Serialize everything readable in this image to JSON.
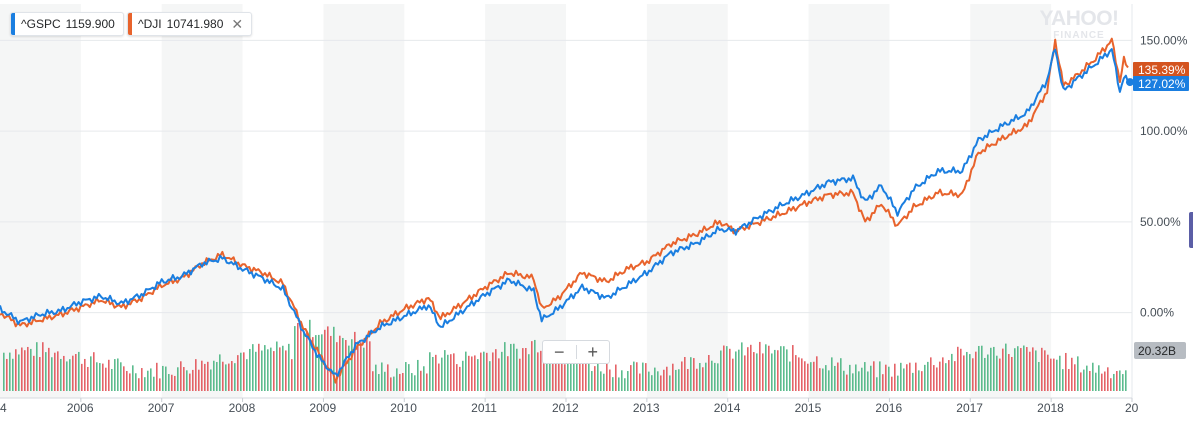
{
  "watermark": {
    "line1": "YAHOO!",
    "line2": "FINANCE"
  },
  "legend": [
    {
      "symbol": "^GSPC",
      "value": "1159.900",
      "color": "#1a7ee0",
      "close_icon": "close-icon"
    },
    {
      "symbol": "^DJI",
      "value": "10741.980",
      "color": "#e8632c",
      "close_icon": "close-icon"
    }
  ],
  "zoom": {
    "minus": "−",
    "plus": "+"
  },
  "chart_data": {
    "type": "line",
    "x_ticks": [
      "2006",
      "2007",
      "2008",
      "2009",
      "2010",
      "2011",
      "2012",
      "2013",
      "2014",
      "2015",
      "2016",
      "2017",
      "2018",
      "20"
    ],
    "x_start_fragment": "4",
    "y_ticks": [
      "150.00%",
      "100.00%",
      "50.00%",
      "0.00%"
    ],
    "y_tick_values": [
      150,
      100,
      50,
      0
    ],
    "ylim": [
      -47,
      170
    ],
    "xlim": [
      2005.0,
      2019.0
    ],
    "grid": true,
    "alternating_year_bands": true,
    "last_values": [
      {
        "label": "135.39%",
        "color": "#d4541f"
      },
      {
        "label": "127.02%",
        "color": "#1a7ee0"
      }
    ],
    "volume_label": "20.32B",
    "series": [
      {
        "name": "^GSPC",
        "color": "#1a7ee0",
        "points": [
          [
            2005.0,
            2
          ],
          [
            2005.25,
            -5
          ],
          [
            2005.5,
            -1
          ],
          [
            2005.75,
            1
          ],
          [
            2006.0,
            6
          ],
          [
            2006.25,
            9
          ],
          [
            2006.5,
            5
          ],
          [
            2006.75,
            10
          ],
          [
            2007.0,
            17
          ],
          [
            2007.25,
            20
          ],
          [
            2007.5,
            27
          ],
          [
            2007.75,
            30
          ],
          [
            2008.0,
            24
          ],
          [
            2008.25,
            19
          ],
          [
            2008.5,
            13
          ],
          [
            2008.75,
            -10
          ],
          [
            2008.95,
            -25
          ],
          [
            2009.15,
            -35
          ],
          [
            2009.4,
            -18
          ],
          [
            2009.7,
            -8
          ],
          [
            2010.0,
            -2
          ],
          [
            2010.3,
            4
          ],
          [
            2010.45,
            -8
          ],
          [
            2010.75,
            2
          ],
          [
            2011.0,
            10
          ],
          [
            2011.3,
            18
          ],
          [
            2011.6,
            12
          ],
          [
            2011.7,
            -4
          ],
          [
            2011.9,
            2
          ],
          [
            2012.2,
            14
          ],
          [
            2012.5,
            8
          ],
          [
            2012.75,
            15
          ],
          [
            2013.0,
            22
          ],
          [
            2013.3,
            33
          ],
          [
            2013.6,
            38
          ],
          [
            2013.9,
            46
          ],
          [
            2014.1,
            45
          ],
          [
            2014.4,
            53
          ],
          [
            2014.7,
            60
          ],
          [
            2014.95,
            65
          ],
          [
            2015.25,
            72
          ],
          [
            2015.55,
            74
          ],
          [
            2015.7,
            61
          ],
          [
            2015.9,
            70
          ],
          [
            2016.1,
            55
          ],
          [
            2016.3,
            68
          ],
          [
            2016.6,
            78
          ],
          [
            2016.9,
            78
          ],
          [
            2017.1,
            95
          ],
          [
            2017.4,
            103
          ],
          [
            2017.7,
            110
          ],
          [
            2017.95,
            128
          ],
          [
            2018.05,
            146
          ],
          [
            2018.15,
            122
          ],
          [
            2018.3,
            128
          ],
          [
            2018.55,
            137
          ],
          [
            2018.75,
            145
          ],
          [
            2018.85,
            122
          ],
          [
            2018.9,
            130
          ],
          [
            2018.95,
            127
          ]
        ]
      },
      {
        "name": "^DJI",
        "color": "#e8632c",
        "points": [
          [
            2005.0,
            0
          ],
          [
            2005.25,
            -7
          ],
          [
            2005.5,
            -4
          ],
          [
            2005.75,
            -1
          ],
          [
            2006.0,
            3
          ],
          [
            2006.25,
            7
          ],
          [
            2006.5,
            3
          ],
          [
            2006.75,
            8
          ],
          [
            2007.0,
            15
          ],
          [
            2007.25,
            19
          ],
          [
            2007.5,
            27
          ],
          [
            2007.75,
            32
          ],
          [
            2008.0,
            26
          ],
          [
            2008.25,
            22
          ],
          [
            2008.5,
            16
          ],
          [
            2008.75,
            -8
          ],
          [
            2008.95,
            -23
          ],
          [
            2009.15,
            -37
          ],
          [
            2009.4,
            -20
          ],
          [
            2009.7,
            -6
          ],
          [
            2010.0,
            2
          ],
          [
            2010.3,
            8
          ],
          [
            2010.45,
            -3
          ],
          [
            2010.75,
            6
          ],
          [
            2011.0,
            14
          ],
          [
            2011.3,
            22
          ],
          [
            2011.6,
            19
          ],
          [
            2011.7,
            2
          ],
          [
            2011.9,
            8
          ],
          [
            2012.2,
            22
          ],
          [
            2012.5,
            17
          ],
          [
            2012.75,
            24
          ],
          [
            2013.0,
            28
          ],
          [
            2013.3,
            38
          ],
          [
            2013.6,
            43
          ],
          [
            2013.9,
            50
          ],
          [
            2014.1,
            45
          ],
          [
            2014.4,
            50
          ],
          [
            2014.7,
            55
          ],
          [
            2014.95,
            60
          ],
          [
            2015.25,
            65
          ],
          [
            2015.55,
            66
          ],
          [
            2015.7,
            50
          ],
          [
            2015.9,
            60
          ],
          [
            2016.1,
            48
          ],
          [
            2016.3,
            58
          ],
          [
            2016.6,
            66
          ],
          [
            2016.9,
            65
          ],
          [
            2017.1,
            88
          ],
          [
            2017.4,
            96
          ],
          [
            2017.7,
            103
          ],
          [
            2017.95,
            122
          ],
          [
            2018.05,
            150
          ],
          [
            2018.15,
            125
          ],
          [
            2018.3,
            130
          ],
          [
            2018.55,
            140
          ],
          [
            2018.75,
            150
          ],
          [
            2018.85,
            128
          ],
          [
            2018.9,
            139
          ],
          [
            2018.95,
            135
          ]
        ]
      }
    ]
  }
}
